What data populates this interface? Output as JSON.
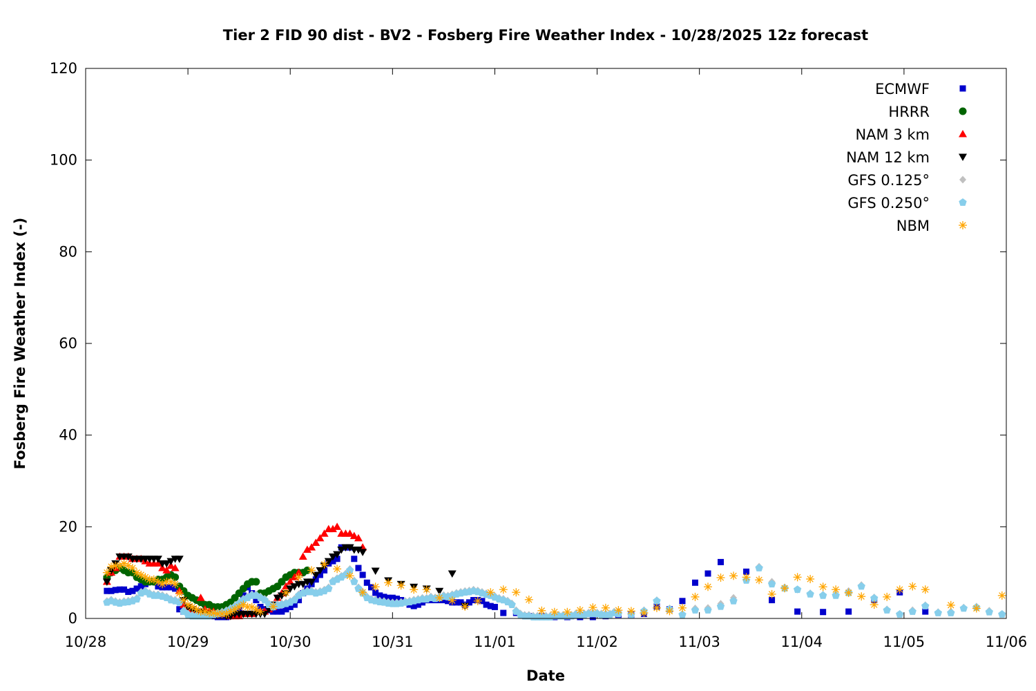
{
  "chart_data": {
    "type": "scatter",
    "title": "Tier 2 FID 90 dist - BV2 - Fosberg Fire Weather Index - 10/28/2025 12z forecast",
    "xlabel": "Date",
    "ylabel": "Fosberg Fire Weather Index (-)",
    "xlim": [
      "2025-10-28T00:00",
      "2025-11-06T00:00"
    ],
    "ylim": [
      0,
      120
    ],
    "x_tick_labels": [
      "10/28",
      "10/29",
      "10/30",
      "10/31",
      "11/01",
      "11/02",
      "11/03",
      "11/04",
      "11/05",
      "11/06"
    ],
    "y_ticks": [
      0,
      20,
      40,
      60,
      80,
      100,
      120
    ],
    "grid": false,
    "legend_position": "top-right",
    "series": [
      {
        "name": "ECMWF",
        "color": "#0000cc",
        "marker": "square",
        "segments": [
          {
            "start": "2025-10-28T05:00",
            "step_hours": 1,
            "values": [
              6,
              6,
              6.2,
              6.3,
              6.3,
              5.8,
              6,
              6.5,
              7,
              7.5,
              8,
              8,
              7,
              6.8,
              6.8,
              6.8,
              6.5,
              2,
              1.5,
              1.5,
              1.5,
              1,
              1,
              0.8,
              0.5,
              0.5,
              0.3,
              0.3,
              0.3,
              0.5,
              1,
              2,
              5,
              6.8,
              5.5,
              4,
              2.5,
              2,
              1.8,
              1.5,
              1.5,
              1.5,
              2,
              2.5,
              3,
              4,
              5.5,
              6.5,
              7.5,
              8.5,
              9.5,
              10.5,
              12,
              12.5,
              13,
              15.5,
              15.5,
              15.5,
              13,
              11,
              9.5,
              7.8,
              6.8,
              5.6,
              5,
              4.7,
              4.5,
              4.5,
              4.3,
              4,
              3.5,
              3,
              2.7,
              3,
              3.5,
              4,
              4,
              4,
              4,
              4,
              3.8,
              3.5,
              3.5,
              3.5,
              3,
              3.5,
              4,
              4,
              3.8,
              3,
              2.7,
              2.5
            ]
          },
          {
            "start": "2025-11-01T02:00",
            "step_hours": 3,
            "values": [
              1.2,
              1.2,
              0.5,
              0.5,
              0.3,
              0.3,
              0.3,
              0.3,
              0.5,
              0.8,
              0.8,
              1,
              2.6,
              2,
              3.8,
              7.8,
              9.8,
              12.3
            ]
          },
          {
            "start": "2025-11-03T11:00",
            "step_hours": 6,
            "values": [
              10.2,
              4,
              1.5,
              1.4,
              1.5,
              4,
              5.7,
              1.5
            ]
          }
        ]
      },
      {
        "name": "HRRR",
        "color": "#006400",
        "marker": "circle",
        "segments": [
          {
            "start": "2025-10-28T05:00",
            "step_hours": 1,
            "values": [
              9,
              10,
              10.5,
              11,
              10.5,
              10,
              10,
              9,
              8.5,
              8,
              8,
              8,
              8.5,
              8.5,
              9,
              9.5,
              9,
              7,
              6,
              5,
              4.5,
              4,
              3.5,
              3,
              3,
              2.5,
              2.5,
              2.5,
              3,
              3.5,
              4.5,
              5.5,
              6.5,
              7.5,
              8,
              8,
              5.5,
              5.5,
              6,
              6.5,
              7,
              8,
              9,
              9.5,
              10,
              10,
              10,
              10.5
            ]
          }
        ]
      },
      {
        "name": "NAM 3 km",
        "color": "#ff0000",
        "marker": "triangle-up",
        "segments": [
          {
            "start": "2025-10-28T05:00",
            "step_hours": 1,
            "values": [
              8,
              10,
              11,
              13.5,
              13.5,
              13.5,
              13,
              13,
              13,
              12.5,
              12,
              12,
              12,
              11,
              10.5,
              11.5,
              11,
              6,
              3,
              2,
              1.5,
              1.5,
              4.5,
              2,
              1.5,
              1.5,
              1,
              1,
              1,
              0.5,
              0.5,
              0.5,
              1,
              1,
              1,
              1.5,
              1.5,
              1.5,
              2,
              2.5,
              4.5,
              5.5,
              7,
              8,
              9,
              10,
              13.5,
              15,
              15.5,
              16.5,
              17.5,
              18.5,
              19.5,
              19.5,
              20,
              18.5,
              18.5,
              18.5,
              18,
              17.5,
              15.5
            ]
          }
        ]
      },
      {
        "name": "NAM 12 km",
        "color": "#000000",
        "marker": "triangle-down",
        "segments": [
          {
            "start": "2025-10-28T05:00",
            "step_hours": 1,
            "values": [
              8,
              10.5,
              12,
              13.5,
              13.5,
              13.5,
              13,
              13,
              13,
              13,
              13,
              13,
              13,
              12,
              12,
              12.5,
              13,
              13,
              4,
              2.5,
              2,
              1.5,
              1.5,
              1,
              1,
              1,
              1,
              1,
              0.5,
              0.5,
              1,
              1,
              1,
              1,
              1,
              1,
              1,
              1,
              2,
              3,
              4.5,
              5,
              5.5,
              6.5,
              7,
              7.5,
              7.5,
              8,
              8,
              9.5,
              10.5,
              11.5,
              12.5,
              13.5,
              14,
              15,
              15.5,
              15.5,
              15,
              15,
              14.5
            ]
          },
          {
            "start": "2025-10-30T20:00",
            "step_hours": 3,
            "values": [
              10.4,
              8.3,
              7.5,
              6.9,
              6.5,
              6,
              9.8,
              2.7
            ]
          }
        ]
      },
      {
        "name": "GFS 0.125°",
        "color": "#c0c0c0",
        "marker": "diamond",
        "segments": [
          {
            "start": "2025-10-28T05:00",
            "step_hours": 1,
            "values": [
              3.8,
              4.1,
              3.8,
              3.6,
              3.8,
              3.9,
              4.1,
              4.5,
              5.8,
              6.1,
              5.6,
              5.3,
              5.3,
              5.1,
              4.8,
              4.3,
              4.1,
              3.8,
              1.8,
              1.1,
              0.8,
              0.8,
              0.8,
              0.8,
              0.8,
              1.1,
              1.3,
              1.5,
              1.8,
              2.3,
              2.8,
              3.5,
              4.3,
              4.8,
              5.3,
              5.3,
              4.8,
              4.3,
              3.3,
              2.8,
              3.1,
              3.3,
              3.5,
              3.8,
              4.3,
              5.3,
              5.8,
              6.1,
              6.1,
              5.8,
              6,
              6.3,
              6.8,
              8.3,
              8.8,
              9.3,
              9.8,
              10.8,
              8.3,
              6.8,
              5.8,
              4.8,
              4.3,
              4.1,
              3.9,
              3.8,
              3.6,
              3.5,
              3.5,
              3.6,
              3.8,
              3.9,
              4.1,
              4.3,
              4.5,
              4.5,
              4.8,
              4.6,
              4.8,
              5.1,
              5,
              5.3,
              5.6,
              5.8,
              6,
              6.1,
              6.3,
              6.1,
              5.8,
              5.5,
              5.3,
              4.9,
              4.5,
              4.3,
              3.9,
              3.3,
              1.8,
              1.1,
              0.8,
              0.8,
              0.6,
              0.6,
              0.6,
              0.6,
              0.6,
              0.8,
              0.8,
              0.8,
              0.8,
              0.8,
              1.1,
              1.1,
              1.1,
              1.3,
              1.3,
              1.3,
              1.1,
              1.1,
              1.1,
              1.5
            ]
          },
          {
            "start": "2025-11-02T05:00",
            "step_hours": 3,
            "values": [
              1.5,
              0.8,
              1.8,
              4,
              2.2,
              1,
              2.2,
              2.3,
              3.2,
              4.5,
              8.5,
              11.3,
              8,
              6.8,
              6.3,
              5.5,
              5.2,
              5.3,
              6,
              7.3,
              4.6,
              2,
              1,
              1.8,
              2.9,
              1.4,
              1.5,
              2.4,
              2.6,
              1.7,
              1
            ]
          }
        ]
      },
      {
        "name": "GFS 0.250°",
        "color": "#87ceeb",
        "marker": "pentagon",
        "segments": [
          {
            "start": "2025-10-28T05:00",
            "step_hours": 1,
            "values": [
              3.5,
              3.8,
              3.5,
              3.3,
              3.5,
              3.6,
              3.8,
              4.2,
              5.5,
              5.8,
              5.3,
              5,
              5,
              4.8,
              4.5,
              4,
              3.8,
              3.5,
              1.5,
              0.8,
              0.5,
              0.5,
              0.5,
              0.5,
              0.5,
              0.8,
              1,
              1.2,
              1.5,
              2,
              2.5,
              3.2,
              4,
              4.5,
              5,
              5,
              4.5,
              4,
              3,
              2.5,
              2.8,
              3,
              3.2,
              3.5,
              4,
              5,
              5.5,
              5.8,
              5.8,
              5.5,
              5.7,
              6,
              6.5,
              8,
              8.5,
              9,
              9.5,
              10.5,
              8,
              6.5,
              5.5,
              4.5,
              4,
              3.8,
              3.6,
              3.5,
              3.3,
              3.2,
              3.2,
              3.3,
              3.5,
              3.6,
              3.8,
              4,
              4.2,
              4.2,
              4.5,
              4.3,
              4.5,
              4.8,
              4.7,
              5,
              5.3,
              5.5,
              5.7,
              5.8,
              6,
              5.8,
              5.5,
              5.2,
              5,
              4.6,
              4.2,
              4,
              3.6,
              3,
              1.5,
              0.8,
              0.5,
              0.5,
              0.3,
              0.3,
              0.3,
              0.3,
              0.3,
              0.5,
              0.5,
              0.5,
              0.5,
              0.5,
              0.8,
              0.8,
              0.8,
              1,
              1,
              1,
              0.8,
              0.8,
              0.8,
              1.2
            ]
          },
          {
            "start": "2025-11-02T05:00",
            "step_hours": 3,
            "values": [
              1,
              0.8,
              1.6,
              3.8,
              2,
              0.8,
              1.8,
              1.8,
              2.6,
              3.8,
              8.3,
              11,
              7.5,
              6.6,
              6.3,
              5.3,
              5,
              5,
              5.6,
              7,
              4.4,
              1.8,
              0.9,
              1.5,
              2.7,
              1.2,
              1.2,
              2.2,
              2.4,
              1.4,
              0.9
            ]
          }
        ]
      },
      {
        "name": "NBM",
        "color": "#ffa500",
        "marker": "star",
        "segments": [
          {
            "start": "2025-10-28T05:00",
            "step_hours": 1,
            "values": [
              10,
              11.3,
              11.5,
              11.5,
              12,
              11.5,
              11,
              10,
              9.5,
              9,
              8.5,
              8.5,
              8,
              7.5,
              8,
              8,
              7.5,
              5.5,
              4,
              3,
              2.5,
              2,
              1.5,
              1.5,
              1.2,
              1.2,
              1,
              1,
              1,
              1.5,
              2,
              2.5,
              3,
              2.5,
              2.5,
              2,
              1.5
            ]
          },
          {
            "start": "2025-10-29T20:00",
            "step_hours": 3,
            "values": [
              2.6,
              5.6,
              9,
              10.5,
              11.8,
              10.8,
              9.3,
              5.7,
              6.9,
              7.8,
              7.2,
              6.3,
              6.3,
              4.5,
              3.9,
              2.6,
              3.8,
              5.7,
              6.3,
              5.7,
              4.1,
              1.7,
              1.4,
              1.4,
              1.8,
              2.4,
              2.3,
              1.8,
              1.6,
              1.2,
              2.3,
              1.6,
              2.3,
              4.7,
              6.9,
              8.9,
              9.3,
              9,
              8.4,
              5.3,
              6.6,
              9,
              8.6,
              6.9,
              6.3,
              5.6,
              4.8,
              3,
              4.7,
              6.3,
              7,
              6.3
            ]
          },
          {
            "start": "2025-11-05T11:00",
            "step_hours": 6,
            "values": [
              2.9,
              2.2,
              5
            ]
          }
        ]
      }
    ]
  }
}
